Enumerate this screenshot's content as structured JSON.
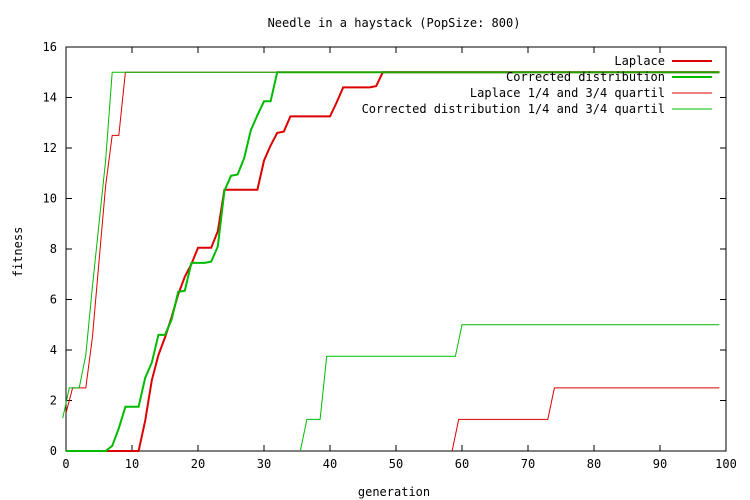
{
  "chart_data": {
    "type": "line",
    "title": "Needle in a haystack (PopSize: 800)",
    "xlabel": "generation",
    "ylabel": "fitness",
    "xlim": [
      0,
      100
    ],
    "ylim": [
      0,
      16
    ],
    "xticks": [
      0,
      10,
      20,
      30,
      40,
      50,
      60,
      70,
      80,
      90,
      100
    ],
    "yticks": [
      0,
      2,
      4,
      6,
      8,
      10,
      12,
      14,
      16
    ],
    "grid": false,
    "legend_position": "top-right",
    "series": [
      {
        "name": "Laplace",
        "color": "#dd0000",
        "bold": true,
        "points": [
          [
            0,
            0
          ],
          [
            10,
            0
          ],
          [
            11,
            0
          ],
          [
            12,
            1.2
          ],
          [
            13,
            2.8
          ],
          [
            14,
            3.8
          ],
          [
            15,
            4.5
          ],
          [
            16,
            5.3
          ],
          [
            17,
            6.2
          ],
          [
            18,
            6.9
          ],
          [
            19,
            7.4
          ],
          [
            20,
            8.05
          ],
          [
            21,
            8.05
          ],
          [
            22,
            8.05
          ],
          [
            23,
            8.7
          ],
          [
            24,
            10.35
          ],
          [
            25,
            10.35
          ],
          [
            26,
            10.35
          ],
          [
            27,
            10.35
          ],
          [
            28,
            10.35
          ],
          [
            29,
            10.35
          ],
          [
            30,
            11.5
          ],
          [
            31,
            12.1
          ],
          [
            32,
            12.6
          ],
          [
            33,
            12.65
          ],
          [
            34,
            13.25
          ],
          [
            35,
            13.25
          ],
          [
            36,
            13.25
          ],
          [
            37,
            13.25
          ],
          [
            38,
            13.25
          ],
          [
            39,
            13.25
          ],
          [
            40,
            13.25
          ],
          [
            41,
            13.8
          ],
          [
            42,
            14.4
          ],
          [
            43,
            14.4
          ],
          [
            44,
            14.4
          ],
          [
            45,
            14.4
          ],
          [
            46,
            14.4
          ],
          [
            47,
            14.45
          ],
          [
            48,
            15
          ],
          [
            99,
            15
          ]
        ]
      },
      {
        "name": "Corrected distribution",
        "color": "#00bb00",
        "bold": true,
        "points": [
          [
            0,
            0
          ],
          [
            6,
            0
          ],
          [
            7,
            0.2
          ],
          [
            8,
            0.9
          ],
          [
            9,
            1.75
          ],
          [
            10,
            1.75
          ],
          [
            11,
            1.75
          ],
          [
            12,
            2.9
          ],
          [
            13,
            3.5
          ],
          [
            14,
            4.6
          ],
          [
            15,
            4.6
          ],
          [
            16,
            5.2
          ],
          [
            17,
            6.3
          ],
          [
            18,
            6.35
          ],
          [
            19,
            7.45
          ],
          [
            20,
            7.45
          ],
          [
            21,
            7.45
          ],
          [
            22,
            7.5
          ],
          [
            23,
            8.1
          ],
          [
            24,
            10.3
          ],
          [
            25,
            10.9
          ],
          [
            26,
            10.95
          ],
          [
            27,
            11.6
          ],
          [
            28,
            12.7
          ],
          [
            29,
            13.3
          ],
          [
            30,
            13.85
          ],
          [
            31,
            13.85
          ],
          [
            32,
            15
          ],
          [
            99,
            15
          ]
        ]
      },
      {
        "name": "Laplace 1/4 and 3/4 quartil",
        "color": "#dd0000",
        "bold": false,
        "lines": [
          [
            [
              0,
              1.5
            ],
            [
              1,
              2.5
            ],
            [
              3,
              2.5
            ],
            [
              4,
              4.5
            ],
            [
              5,
              7.5
            ],
            [
              6,
              10.5
            ],
            [
              7,
              12.5
            ],
            [
              8,
              12.5
            ],
            [
              9,
              15
            ],
            [
              99,
              15
            ]
          ],
          [
            [
              58.5,
              0
            ],
            [
              59.5,
              1.25
            ],
            [
              73,
              1.25
            ],
            [
              74,
              2.5
            ],
            [
              99,
              2.5
            ]
          ]
        ]
      },
      {
        "name": "Corrected distribution 1/4 and 3/4 quartil",
        "color": "#00bb00",
        "bold": false,
        "lines": [
          [
            [
              -0.5,
              1.3
            ],
            [
              0.5,
              2.5
            ],
            [
              2,
              2.5
            ],
            [
              3,
              3.8
            ],
            [
              4,
              6.5
            ],
            [
              5,
              9
            ],
            [
              6,
              11.5
            ],
            [
              7,
              15
            ],
            [
              99,
              15
            ]
          ],
          [
            [
              35.5,
              0
            ],
            [
              36.5,
              1.25
            ],
            [
              38.5,
              1.25
            ],
            [
              39.5,
              3.75
            ],
            [
              59,
              3.75
            ],
            [
              60,
              5
            ],
            [
              99,
              5
            ]
          ]
        ]
      }
    ]
  }
}
